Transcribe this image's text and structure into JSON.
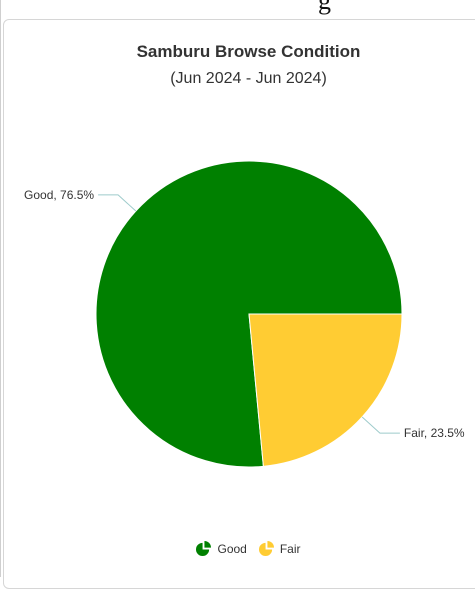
{
  "top_text": "g",
  "chart_data": {
    "type": "pie",
    "title": "Samburu Browse Condition",
    "subtitle": "(Jun 2024 - Jun 2024)",
    "slices": [
      {
        "label": "Good",
        "value": 76.5,
        "display": "Good, 76.5%",
        "color": "#008000"
      },
      {
        "label": "Fair",
        "value": 23.5,
        "display": "Fair, 23.5%",
        "color": "#ffcc33"
      }
    ],
    "legend_position": "bottom-center"
  }
}
